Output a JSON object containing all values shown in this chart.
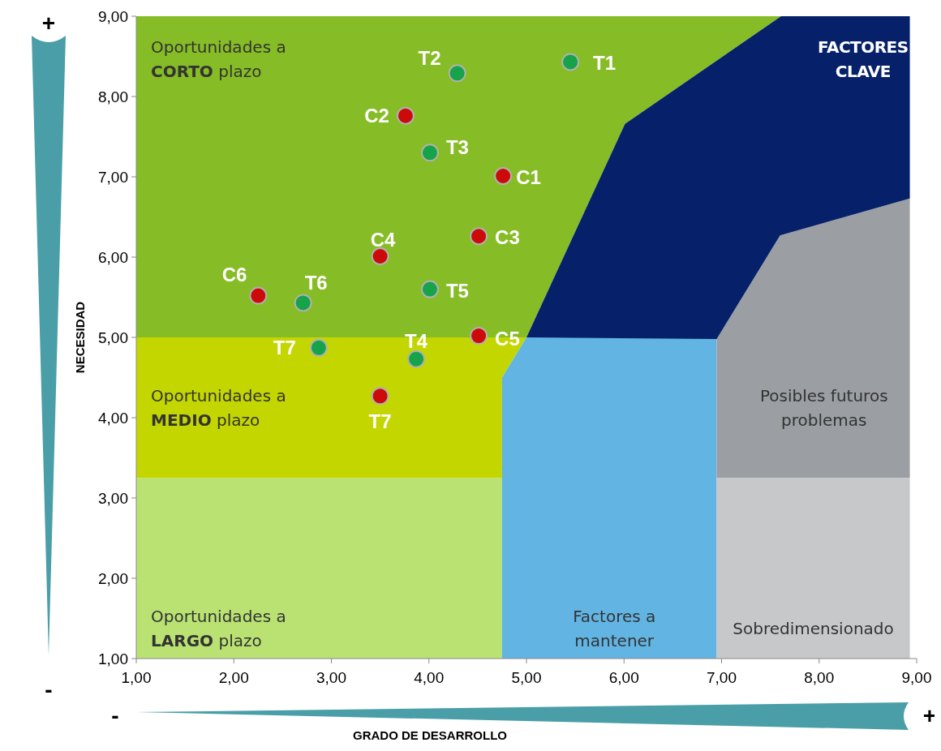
{
  "chart_data": {
    "type": "scatter",
    "xlabel": "GRADO DE DESARROLLO",
    "ylabel": "NECESIDAD",
    "xlim": [
      1,
      9
    ],
    "ylim": [
      1,
      9
    ],
    "xticks": [
      {
        "value": 1,
        "label": "1,00"
      },
      {
        "value": 2,
        "label": "2,00"
      },
      {
        "value": 3,
        "label": "3,00"
      },
      {
        "value": 4,
        "label": "4,00"
      },
      {
        "value": 5,
        "label": "5,00"
      },
      {
        "value": 6,
        "label": "6,00"
      },
      {
        "value": 7,
        "label": "7,00"
      },
      {
        "value": 8,
        "label": "8,00"
      },
      {
        "value": 9,
        "label": "9,00"
      }
    ],
    "yticks": [
      {
        "value": 1,
        "label": "1,00"
      },
      {
        "value": 2,
        "label": "2,00"
      },
      {
        "value": 3,
        "label": "3,00"
      },
      {
        "value": 4,
        "label": "4,00"
      },
      {
        "value": 5,
        "label": "5,00"
      },
      {
        "value": 6,
        "label": "6,00"
      },
      {
        "value": 7,
        "label": "7,00"
      },
      {
        "value": 8,
        "label": "8,00"
      },
      {
        "value": 9,
        "label": "9,00"
      }
    ],
    "grid": false,
    "marker": "circle",
    "series": [
      {
        "color": "#16a34a",
        "x": [
          5.45,
          4.29,
          4.01,
          3.87,
          4.01,
          2.71,
          2.87
        ],
        "values": [
          8.43,
          8.29,
          7.3,
          4.73,
          5.6,
          5.43,
          4.87
        ],
        "value_labels": [
          "T1",
          "T2",
          "T3",
          "T4",
          "T5",
          "T6",
          "T7"
        ]
      },
      {
        "color": "#cc0a0a",
        "x": [
          4.76,
          3.76,
          4.51,
          3.5,
          4.51,
          2.25,
          3.5
        ],
        "values": [
          7.01,
          7.76,
          6.26,
          6.01,
          5.02,
          5.52,
          4.27
        ],
        "value_labels": [
          "C1",
          "C2",
          "C3",
          "C4",
          "C5",
          "C6",
          "T7"
        ]
      }
    ],
    "annotations": [
      "Oportunidades a CORTO plazo",
      "Oportunidades a MEDIO plazo",
      "Oportunidades a LARGO plazo",
      "FACTORES CLAVE",
      "Factores a mantener",
      "Posibles futuros problemas",
      "Sobredimensionado",
      "+",
      "-",
      "-",
      "+"
    ]
  }
}
